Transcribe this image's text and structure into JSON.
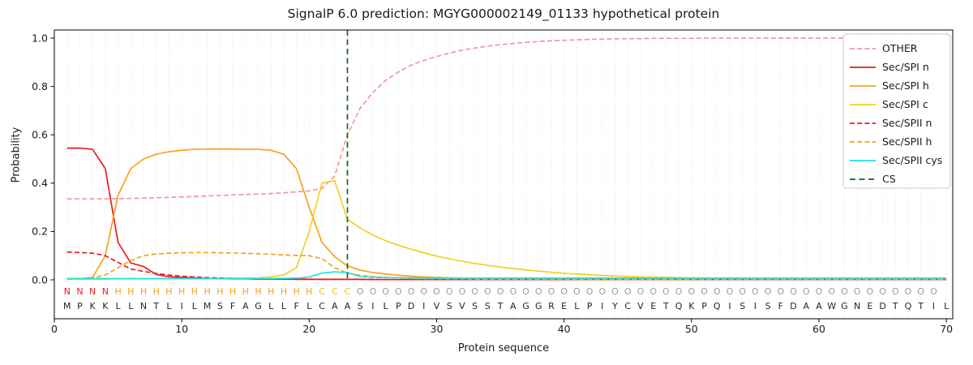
{
  "chart_data": {
    "type": "line",
    "title": "SignalP 6.0 prediction: MGYG000002149_01133 hypothetical protein",
    "xlabel": "Protein sequence",
    "ylabel": "Probability",
    "xlim": [
      0,
      70.5
    ],
    "ylim": [
      0.0,
      1.0
    ],
    "xticks": [
      0,
      10,
      20,
      30,
      40,
      50,
      60,
      70
    ],
    "yticks": [
      0.0,
      0.2,
      0.4,
      0.6,
      0.8,
      1.0
    ],
    "grid": "vertical dotted line at every residue position",
    "legend_position": "upper right",
    "x_start": 1,
    "x_step": 1,
    "sequence": "MPKKLLNTLILMSFAGLLFLCAASILPDIVSVSSTAGGRELPIYCVETQKPQISISFDAAWGNEDTQTIL",
    "annotation": "NNNNHHHHHHHHHHHHHHHHCCCOOOOOOOOOOOOOOOOOOOOOOOOOOOOOOOOOOOOOOOOOOOOOO",
    "annotation_colors": {
      "N": "#eb1a20",
      "H": "#f9a11b",
      "C": "#edc418",
      "O": "#9c9c9c"
    },
    "series": [
      {
        "name": "OTHER",
        "color": "#f4979d",
        "dash": "6 3.2",
        "values": [
          0.335,
          0.335,
          0.335,
          0.335,
          0.336,
          0.337,
          0.338,
          0.34,
          0.341,
          0.343,
          0.345,
          0.347,
          0.349,
          0.351,
          0.353,
          0.355,
          0.357,
          0.36,
          0.364,
          0.368,
          0.378,
          0.43,
          0.6,
          0.71,
          0.775,
          0.825,
          0.86,
          0.888,
          0.908,
          0.924,
          0.938,
          0.95,
          0.959,
          0.967,
          0.973,
          0.978,
          0.982,
          0.986,
          0.989,
          0.991,
          0.993,
          0.995,
          0.996,
          0.997,
          0.998,
          0.998,
          0.999,
          0.999,
          0.999,
          0.999,
          1,
          1,
          1,
          1,
          1,
          1,
          1,
          1,
          1,
          1,
          1,
          1,
          1,
          1,
          1,
          1,
          1,
          1,
          1,
          1
        ]
      },
      {
        "name": "Sec/SPI n",
        "color": "#eb1a20",
        "dash": null,
        "values": [
          0.545,
          0.545,
          0.54,
          0.46,
          0.155,
          0.07,
          0.055,
          0.022,
          0.013,
          0.01,
          0.008,
          0.006,
          0.005,
          0.004,
          0.004,
          0.003,
          0.003,
          0.003,
          0.002,
          0.002,
          0.002,
          0.002,
          0.002,
          0.002,
          0.001,
          0.001,
          0.001,
          0.001,
          0.001,
          0.001,
          0.001,
          0.001,
          0.001,
          0.001,
          0.001,
          0.001,
          0.001,
          0.001,
          0.001,
          0.001,
          0.001,
          0.001,
          0.001,
          0.001,
          0.001,
          0.001,
          0.001,
          0.001,
          0.001,
          0.001,
          0.001,
          0.001,
          0.001,
          0.001,
          0.001,
          0.001,
          0.001,
          0.001,
          0.001,
          0.001,
          0.001,
          0.001,
          0.001,
          0.001,
          0.001,
          0.001,
          0.001,
          0.001,
          0.001,
          0.001
        ]
      },
      {
        "name": "Sec/SPI h",
        "color": "#f9a11b",
        "dash": null,
        "values": [
          0.004,
          0.004,
          0.01,
          0.1,
          0.35,
          0.46,
          0.5,
          0.52,
          0.53,
          0.536,
          0.54,
          0.541,
          0.541,
          0.541,
          0.54,
          0.54,
          0.536,
          0.52,
          0.46,
          0.3,
          0.155,
          0.095,
          0.058,
          0.04,
          0.03,
          0.024,
          0.019,
          0.015,
          0.012,
          0.01,
          0.008,
          0.007,
          0.006,
          0.005,
          0.005,
          0.004,
          0.004,
          0.004,
          0.003,
          0.003,
          0.003,
          0.003,
          0.003,
          0.002,
          0.002,
          0.002,
          0.002,
          0.002,
          0.002,
          0.002,
          0.002,
          0.002,
          0.002,
          0.002,
          0.002,
          0.002,
          0.002,
          0.002,
          0.002,
          0.002,
          0.002,
          0.002,
          0.002,
          0.002,
          0.002,
          0.002,
          0.002,
          0.002,
          0.002,
          0.002
        ]
      },
      {
        "name": "Sec/SPI c",
        "color": "#f3d020",
        "dash": null,
        "values": [
          0.002,
          0.002,
          0.003,
          0.003,
          0.004,
          0.004,
          0.004,
          0.005,
          0.005,
          0.005,
          0.005,
          0.005,
          0.006,
          0.006,
          0.007,
          0.008,
          0.012,
          0.02,
          0.05,
          0.2,
          0.4,
          0.41,
          0.25,
          0.215,
          0.185,
          0.162,
          0.143,
          0.127,
          0.112,
          0.098,
          0.087,
          0.077,
          0.068,
          0.06,
          0.053,
          0.047,
          0.041,
          0.036,
          0.031,
          0.027,
          0.024,
          0.021,
          0.018,
          0.016,
          0.014,
          0.012,
          0.011,
          0.01,
          0.009,
          0.008,
          0.007,
          0.007,
          0.006,
          0.006,
          0.005,
          0.005,
          0.005,
          0.004,
          0.004,
          0.004,
          0.004,
          0.003,
          0.003,
          0.003,
          0.003,
          0.003,
          0.003,
          0.003,
          0.003,
          0.003
        ]
      },
      {
        "name": "Sec/SPII n",
        "color": "#eb1a20",
        "dash": "6 3.2",
        "values": [
          0.115,
          0.113,
          0.11,
          0.1,
          0.072,
          0.045,
          0.035,
          0.026,
          0.02,
          0.015,
          0.012,
          0.009,
          0.007,
          0.006,
          0.005,
          0.004,
          0.004,
          0.003,
          0.003,
          0.003,
          0.002,
          0.002,
          0.002,
          0.002,
          0.002,
          0.001,
          0.001,
          0.001,
          0.001,
          0.001,
          0.001,
          0.001,
          0.001,
          0.001,
          0.001,
          0.001,
          0.001,
          0.001,
          0.001,
          0.001,
          0.001,
          0.001,
          0.001,
          0.001,
          0.001,
          0.001,
          0.001,
          0.001,
          0.001,
          0.001,
          0.001,
          0.001,
          0.001,
          0.001,
          0.001,
          0.001,
          0.001,
          0.001,
          0.001,
          0.001,
          0.001,
          0.001,
          0.001,
          0.001,
          0.001,
          0.001,
          0.001,
          0.001,
          0.001,
          0.001
        ]
      },
      {
        "name": "Sec/SPII h",
        "color": "#f9a11b",
        "dash": "6 3.2",
        "values": [
          0.004,
          0.005,
          0.007,
          0.02,
          0.05,
          0.08,
          0.1,
          0.107,
          0.11,
          0.112,
          0.113,
          0.113,
          0.112,
          0.111,
          0.11,
          0.108,
          0.106,
          0.103,
          0.101,
          0.1,
          0.088,
          0.05,
          0.028,
          0.018,
          0.013,
          0.01,
          0.008,
          0.006,
          0.005,
          0.005,
          0.004,
          0.004,
          0.003,
          0.003,
          0.003,
          0.003,
          0.003,
          0.003,
          0.003,
          0.003,
          0.002,
          0.002,
          0.002,
          0.002,
          0.002,
          0.002,
          0.002,
          0.002,
          0.002,
          0.002,
          0.002,
          0.002,
          0.002,
          0.002,
          0.002,
          0.002,
          0.002,
          0.002,
          0.002,
          0.002,
          0.002,
          0.002,
          0.002,
          0.002,
          0.002,
          0.002,
          0.002,
          0.002,
          0.002,
          0.002
        ]
      },
      {
        "name": "Sec/SPII cys",
        "color": "#1fe0e4",
        "dash": null,
        "values": [
          0.005,
          0.005,
          0.005,
          0.005,
          0.005,
          0.005,
          0.005,
          0.005,
          0.005,
          0.005,
          0.005,
          0.005,
          0.005,
          0.005,
          0.005,
          0.005,
          0.005,
          0.006,
          0.007,
          0.012,
          0.028,
          0.033,
          0.03,
          0.014,
          0.011,
          0.009,
          0.009,
          0.008,
          0.008,
          0.007,
          0.007,
          0.007,
          0.007,
          0.007,
          0.007,
          0.007,
          0.007,
          0.007,
          0.007,
          0.007,
          0.007,
          0.007,
          0.007,
          0.007,
          0.007,
          0.007,
          0.007,
          0.007,
          0.007,
          0.007,
          0.007,
          0.007,
          0.007,
          0.007,
          0.007,
          0.007,
          0.007,
          0.007,
          0.007,
          0.007,
          0.007,
          0.007,
          0.007,
          0.007,
          0.007,
          0.007,
          0.007,
          0.007,
          0.007,
          0.007
        ]
      }
    ],
    "cs": {
      "name": "CS",
      "position": 23,
      "color": "#176617",
      "dash": "7 4.5"
    }
  }
}
